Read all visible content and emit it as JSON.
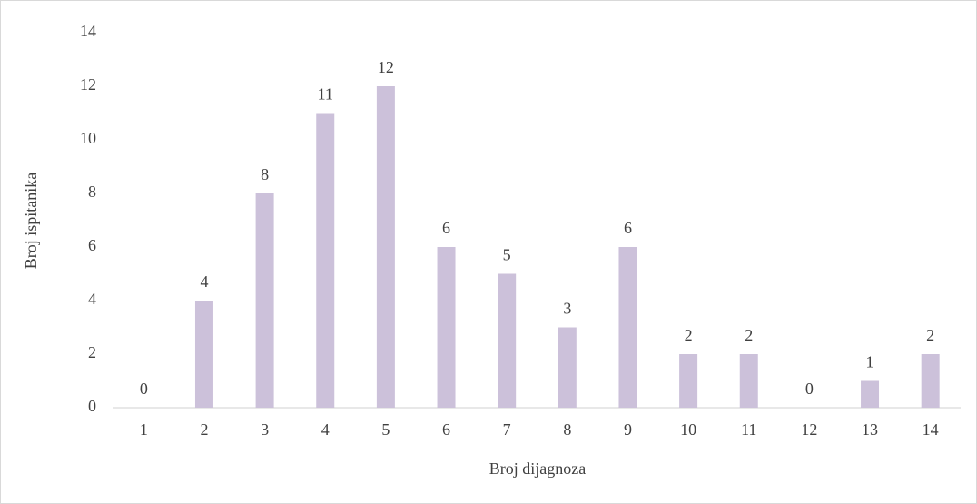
{
  "chart_data": {
    "type": "bar",
    "categories": [
      "1",
      "2",
      "3",
      "4",
      "5",
      "6",
      "7",
      "8",
      "9",
      "10",
      "11",
      "12",
      "13",
      "14"
    ],
    "values": [
      0,
      4,
      8,
      11,
      12,
      6,
      5,
      3,
      6,
      2,
      2,
      0,
      1,
      2
    ],
    "color": "#ccc1da",
    "xlabel": "Broj dijagnoza",
    "ylabel": "Broj ispitanika",
    "ylim": [
      0,
      14
    ],
    "yticks": [
      0,
      2,
      4,
      6,
      8,
      10,
      12,
      14
    ],
    "grid": false
  }
}
